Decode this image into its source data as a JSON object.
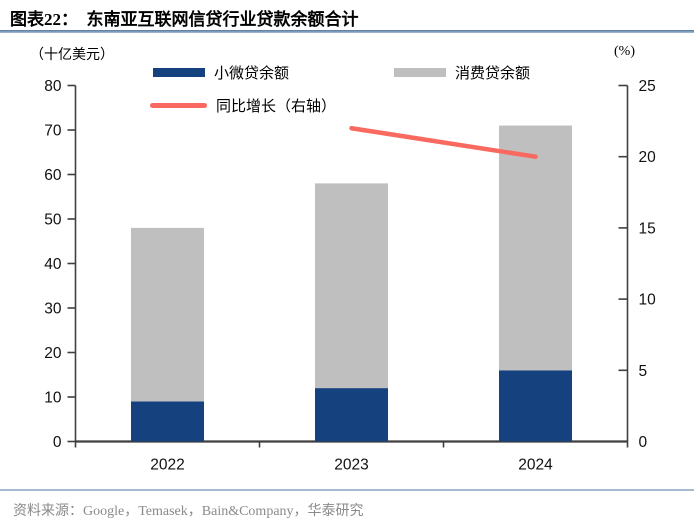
{
  "header": {
    "title": "图表22：  东南亚互联网信贷行业贷款余额合计"
  },
  "axes": {
    "left_unit": "（十亿美元）",
    "right_unit": "(%)"
  },
  "legend": [
    {
      "label": "小微贷余额",
      "marker": "bar",
      "color": "#15417E"
    },
    {
      "label": "消费贷余额",
      "marker": "bar",
      "color": "#BFBFBF"
    },
    {
      "label": "同比增长（右轴）",
      "marker": "line",
      "color": "#F9695F"
    }
  ],
  "footer": {
    "source": "资料来源：Google，Temasek，Bain&Company，华泰研究"
  },
  "colors": {
    "axis": "#3f3f3f",
    "tick_label": "#111111"
  },
  "chart_data": {
    "type": "combo-stacked-bar-line",
    "title": "东南亚互联网信贷行业贷款余额合计",
    "categories": [
      "2022",
      "2023",
      "2024"
    ],
    "series": [
      {
        "name": "小微贷余额",
        "type": "bar",
        "stack": true,
        "axis": "left",
        "color": "#15417E",
        "values": [
          9,
          12,
          16
        ]
      },
      {
        "name": "消费贷余额",
        "type": "bar",
        "stack": true,
        "axis": "left",
        "color": "#BFBFBF",
        "values": [
          39,
          46,
          55
        ]
      },
      {
        "name": "同比增长（右轴）",
        "type": "line",
        "axis": "right",
        "color": "#F9695F",
        "values": [
          null,
          22,
          20
        ]
      }
    ],
    "stacked_totals": [
      48,
      58,
      71
    ],
    "left_axis": {
      "label": "（十亿美元）",
      "min": 0,
      "max": 80,
      "step": 10
    },
    "right_axis": {
      "label": "(%)",
      "min": 0,
      "max": 25,
      "step": 5
    },
    "grid": false,
    "legend_position": "top"
  }
}
